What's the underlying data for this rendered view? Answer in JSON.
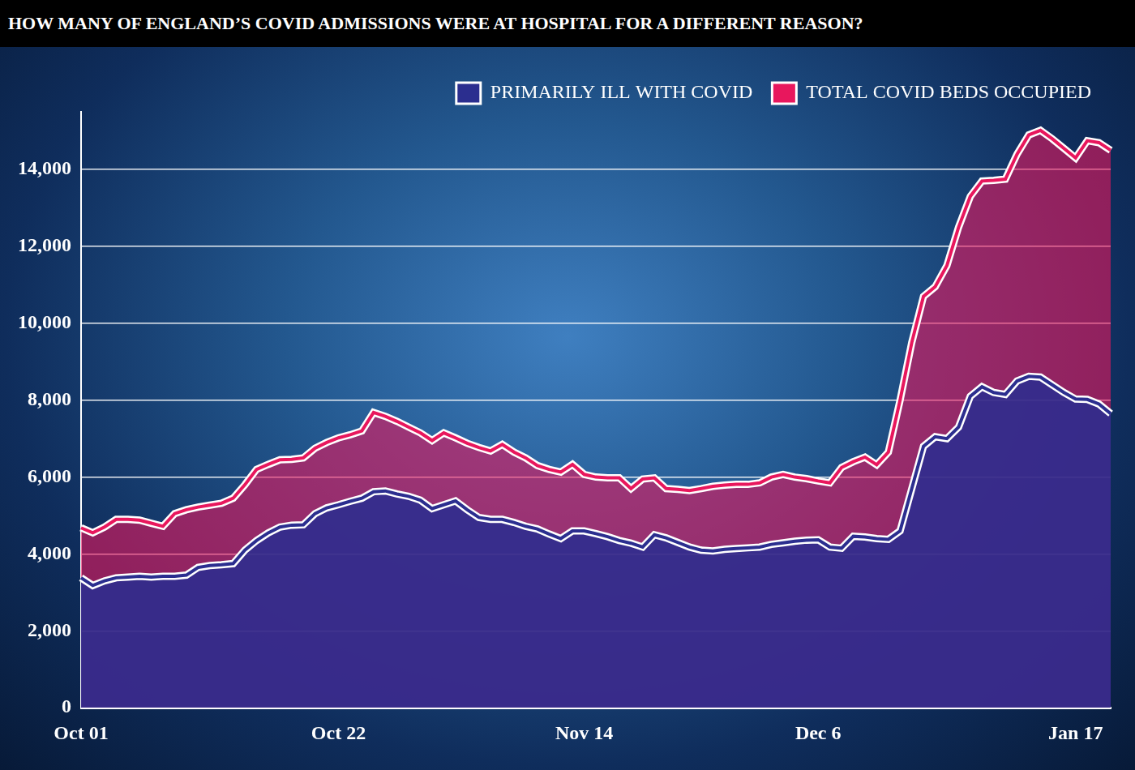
{
  "chart_data": {
    "type": "area",
    "title": "HOW MANY OF ENGLAND’S COVID ADMISSIONS WERE AT HOSPITAL FOR A DIFFERENT REASON?",
    "categories": [
      "Oct 01",
      null,
      null,
      null,
      null,
      null,
      null,
      null,
      null,
      null,
      null,
      null,
      null,
      null,
      null,
      null,
      null,
      null,
      null,
      null,
      null,
      null,
      "Oct 22",
      null,
      null,
      null,
      null,
      null,
      null,
      null,
      null,
      null,
      null,
      null,
      null,
      null,
      null,
      null,
      null,
      null,
      null,
      null,
      null,
      "Nov 14",
      null,
      null,
      null,
      null,
      null,
      null,
      null,
      null,
      null,
      null,
      null,
      null,
      null,
      null,
      null,
      null,
      null,
      null,
      null,
      "Dec 6",
      null,
      null,
      null,
      null,
      null,
      null,
      null,
      null,
      null,
      null,
      null,
      null,
      null,
      null,
      null,
      null,
      null,
      null,
      null,
      null,
      null,
      "Jan 17",
      null,
      null,
      null
    ],
    "series": [
      {
        "name": "PRIMARILY ILL WITH COVID",
        "color": "#2b2e8f",
        "values": [
          3380,
          3180,
          3300,
          3380,
          3400,
          3420,
          3400,
          3420,
          3420,
          3450,
          3650,
          3700,
          3720,
          3750,
          4100,
          4350,
          4550,
          4700,
          4750,
          4760,
          5050,
          5200,
          5280,
          5370,
          5450,
          5620,
          5640,
          5560,
          5500,
          5400,
          5180,
          5280,
          5380,
          5150,
          4950,
          4900,
          4900,
          4820,
          4720,
          4650,
          4520,
          4400,
          4600,
          4600,
          4530,
          4450,
          4350,
          4280,
          4180,
          4500,
          4420,
          4300,
          4180,
          4100,
          4080,
          4120,
          4140,
          4160,
          4180,
          4250,
          4290,
          4330,
          4360,
          4370,
          4180,
          4150,
          4460,
          4440,
          4400,
          4380,
          4600,
          5700,
          6800,
          7050,
          7000,
          7300,
          8100,
          8350,
          8200,
          8150,
          8500,
          8620,
          8600,
          8400,
          8200,
          8030,
          8020,
          7900,
          7650
        ]
      },
      {
        "name": "TOTAL COVID BEDS OCCUPIED",
        "color": "#e8175d",
        "values": [
          4680,
          4550,
          4700,
          4900,
          4900,
          4880,
          4800,
          4720,
          5050,
          5150,
          5220,
          5270,
          5320,
          5450,
          5800,
          6200,
          6330,
          6450,
          6460,
          6500,
          6750,
          6900,
          7020,
          7100,
          7200,
          7680,
          7580,
          7450,
          7300,
          7150,
          6950,
          7150,
          7020,
          6880,
          6770,
          6680,
          6850,
          6650,
          6500,
          6300,
          6200,
          6130,
          6330,
          6070,
          6000,
          5980,
          5980,
          5700,
          5950,
          5980,
          5700,
          5680,
          5650,
          5700,
          5760,
          5790,
          5810,
          5810,
          5850,
          6000,
          6070,
          6000,
          5960,
          5900,
          5850,
          6250,
          6400,
          6520,
          6320,
          6650,
          8000,
          9500,
          10700,
          10950,
          11500,
          12500,
          13300,
          13700,
          13720,
          13750,
          14400,
          14900,
          15020,
          14800,
          14550,
          14300,
          14750,
          14700,
          14500
        ]
      }
    ],
    "ylim": [
      0,
      15500
    ],
    "yticks": [
      0,
      {
        "value": 2000,
        "label": "2,000"
      },
      {
        "value": 4000,
        "label": "4,000"
      },
      {
        "value": 6000,
        "label": "6,000"
      },
      {
        "value": 8000,
        "label": "8,000"
      },
      {
        "value": 10000,
        "label": "10,000"
      },
      {
        "value": 12000,
        "label": "12,000"
      },
      {
        "value": 14000,
        "label": "14,000"
      }
    ],
    "grid": true,
    "legend": "top-right"
  }
}
